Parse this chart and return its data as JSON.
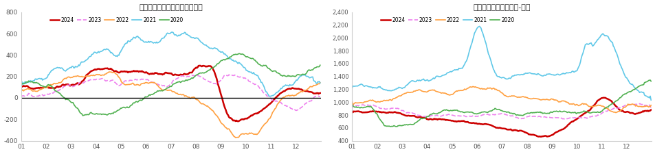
{
  "chart1_title": "上海热轧卷板与螺纹钢价差走势",
  "chart2_title": "螺废价差：上海螺纹钢-废钢",
  "years": [
    "2024",
    "2023",
    "2022",
    "2021",
    "2020"
  ],
  "colors": [
    "#cc0000",
    "#ee82ee",
    "#ffa040",
    "#60c8e8",
    "#50b050"
  ],
  "styles": [
    "-",
    "--",
    "-",
    "-",
    "-"
  ],
  "linewidths": [
    1.8,
    1.2,
    1.2,
    1.2,
    1.2
  ],
  "chart1_ylim": [
    -400,
    800
  ],
  "chart1_yticks": [
    -400,
    -200,
    0,
    200,
    400,
    600,
    800
  ],
  "chart2_ylim": [
    400,
    2400
  ],
  "chart2_yticks": [
    400,
    600,
    800,
    1000,
    1200,
    1400,
    1600,
    1800,
    2000,
    2200,
    2400
  ],
  "xtick_labels": [
    "01",
    "02",
    "03",
    "04",
    "05",
    "06",
    "07",
    "08",
    "09",
    "10",
    "11",
    "12"
  ],
  "background_color": "#ffffff"
}
